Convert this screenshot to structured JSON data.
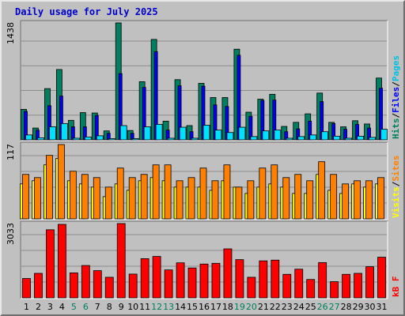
{
  "title": "Daily usage for July 2025",
  "colors": {
    "title": "#0000cc",
    "hits": "#008080",
    "files": "#0000ff",
    "sites": "#ff8000",
    "visits": "#ffff00",
    "kbytes": "#ff0000",
    "weekend": "#00805c",
    "panel_bg": "#c0c0c0",
    "pages": "#00e6ff"
  },
  "chart_data": [
    {
      "type": "bar",
      "title": "Hits / Files / Pages",
      "legend": [
        {
          "label": "Pages",
          "color": "#00c0e0"
        },
        {
          "label": "Files",
          "color": "#0000ff"
        },
        {
          "label": "Hits",
          "color": "#008060"
        }
      ],
      "y_max_label": "1438",
      "ylim": [
        0,
        1438
      ],
      "categories": [
        "1",
        "2",
        "3",
        "4",
        "5",
        "6",
        "7",
        "8",
        "9",
        "10",
        "11",
        "12",
        "13",
        "14",
        "15",
        "16",
        "17",
        "18",
        "19",
        "20",
        "21",
        "22",
        "23",
        "24",
        "25",
        "26",
        "27",
        "28",
        "29",
        "30",
        "31"
      ],
      "weekend_days": [
        "5",
        "6",
        "12",
        "13",
        "19",
        "20",
        "26",
        "27"
      ],
      "series": [
        {
          "name": "Hits",
          "values": [
            375,
            145,
            630,
            865,
            240,
            335,
            330,
            110,
            1438,
            115,
            715,
            1235,
            230,
            740,
            175,
            695,
            520,
            520,
            1115,
            340,
            500,
            560,
            165,
            215,
            320,
            575,
            215,
            160,
            235,
            195,
            760
          ]
        },
        {
          "name": "Files",
          "values": [
            350,
            120,
            420,
            540,
            160,
            160,
            300,
            80,
            815,
            80,
            645,
            1085,
            120,
            665,
            100,
            660,
            430,
            410,
            1040,
            290,
            485,
            490,
            100,
            135,
            230,
            470,
            200,
            130,
            190,
            145,
            635
          ]
        },
        {
          "name": "Pages",
          "values": [
            60,
            25,
            160,
            200,
            20,
            35,
            50,
            15,
            175,
            15,
            160,
            190,
            20,
            155,
            20,
            180,
            120,
            90,
            155,
            40,
            110,
            120,
            20,
            40,
            60,
            100,
            45,
            20,
            45,
            30,
            130
          ]
        }
      ]
    },
    {
      "type": "bar",
      "title": "Visits / Sites",
      "legend": [
        {
          "label": "Sites",
          "color": "#ff8000"
        },
        {
          "label": "Visits",
          "color": "#ffff00"
        }
      ],
      "y_max_label": "117",
      "ylim": [
        0,
        117
      ],
      "categories": [
        "1",
        "2",
        "3",
        "4",
        "5",
        "6",
        "7",
        "8",
        "9",
        "10",
        "11",
        "12",
        "13",
        "14",
        "15",
        "16",
        "17",
        "18",
        "19",
        "20",
        "21",
        "22",
        "23",
        "24",
        "25",
        "26",
        "27",
        "28",
        "29",
        "30",
        "31"
      ],
      "series": [
        {
          "name": "Visits",
          "values": [
            55,
            60,
            85,
            95,
            60,
            55,
            50,
            35,
            55,
            45,
            60,
            65,
            60,
            50,
            50,
            50,
            45,
            60,
            50,
            40,
            50,
            55,
            50,
            40,
            40,
            70,
            45,
            40,
            55,
            50,
            55
          ]
        },
        {
          "name": "Sites",
          "values": [
            70,
            65,
            100,
            117,
            75,
            70,
            65,
            50,
            80,
            65,
            70,
            85,
            85,
            60,
            65,
            80,
            60,
            85,
            50,
            60,
            80,
            85,
            65,
            70,
            60,
            90,
            70,
            55,
            60,
            60,
            65
          ]
        }
      ]
    },
    {
      "type": "bar",
      "title": "kB F",
      "legend": [
        {
          "label": "kB F",
          "color": "#ff0000"
        }
      ],
      "y_max_label": "3033",
      "ylim": [
        0,
        3033
      ],
      "categories": [
        "1",
        "2",
        "3",
        "4",
        "5",
        "6",
        "7",
        "8",
        "9",
        "10",
        "11",
        "12",
        "13",
        "14",
        "15",
        "16",
        "17",
        "18",
        "19",
        "20",
        "21",
        "22",
        "23",
        "24",
        "25",
        "26",
        "27",
        "28",
        "29",
        "30",
        "31"
      ],
      "series": [
        {
          "name": "kB F",
          "values": [
            790,
            1000,
            2780,
            3000,
            1020,
            1320,
            1110,
            840,
            3033,
            970,
            1600,
            1690,
            1140,
            1430,
            1220,
            1380,
            1410,
            2000,
            1560,
            840,
            1510,
            1540,
            960,
            1170,
            750,
            1440,
            660,
            960,
            1000,
            1270,
            1660
          ]
        }
      ]
    }
  ]
}
